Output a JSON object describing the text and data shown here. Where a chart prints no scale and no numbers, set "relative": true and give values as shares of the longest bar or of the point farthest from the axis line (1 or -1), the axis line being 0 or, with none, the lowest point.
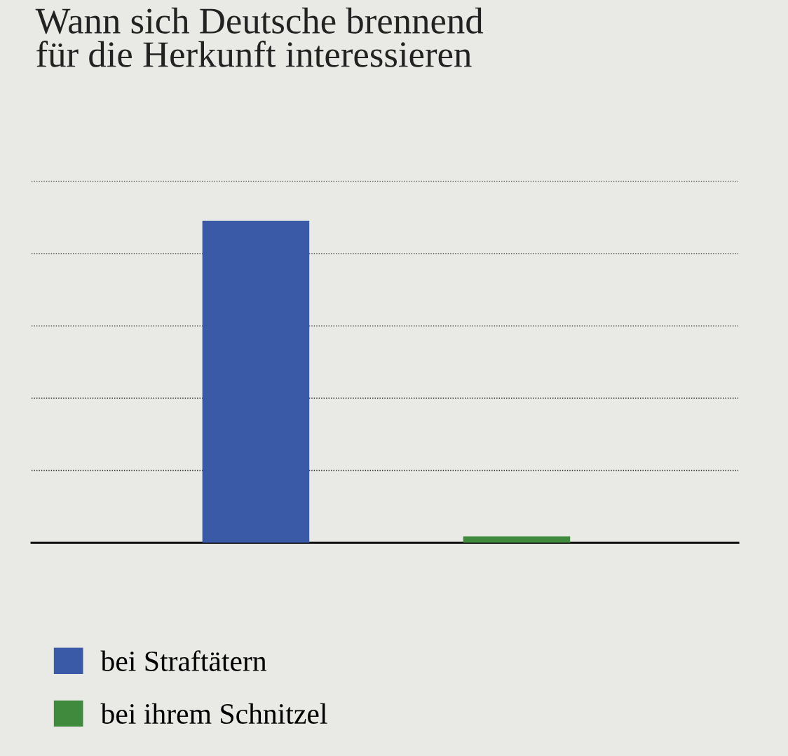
{
  "chart_data": {
    "type": "bar",
    "title": "Wann sich Deutsche brennend\nfür die Herkunft interessieren",
    "categories": [
      null,
      null
    ],
    "relative": true,
    "stacked": true,
    "series": [
      {
        "name": "bei Straftätern",
        "color": "#3a59a6",
        "values": [
          1,
          0
        ]
      },
      {
        "name": "bei ihrem Schnitzel",
        "color": "#3f8a3c",
        "values": [
          0,
          0.02
        ]
      }
    ],
    "grid": "y",
    "legend": "bottom left"
  }
}
